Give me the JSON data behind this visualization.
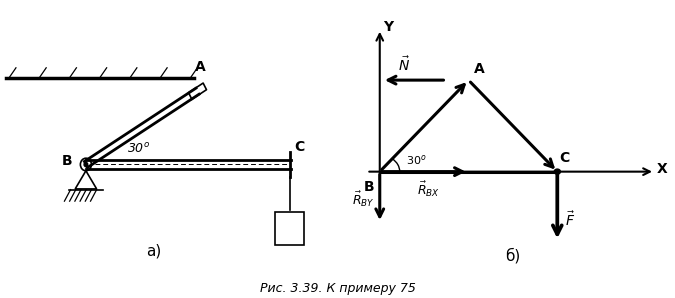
{
  "fig_width": 6.75,
  "fig_height": 2.98,
  "dpi": 100,
  "caption": "Рис. 3.39. К примеру 75",
  "label_a": "а)",
  "label_b": "б)",
  "bg_color": "#ffffff"
}
